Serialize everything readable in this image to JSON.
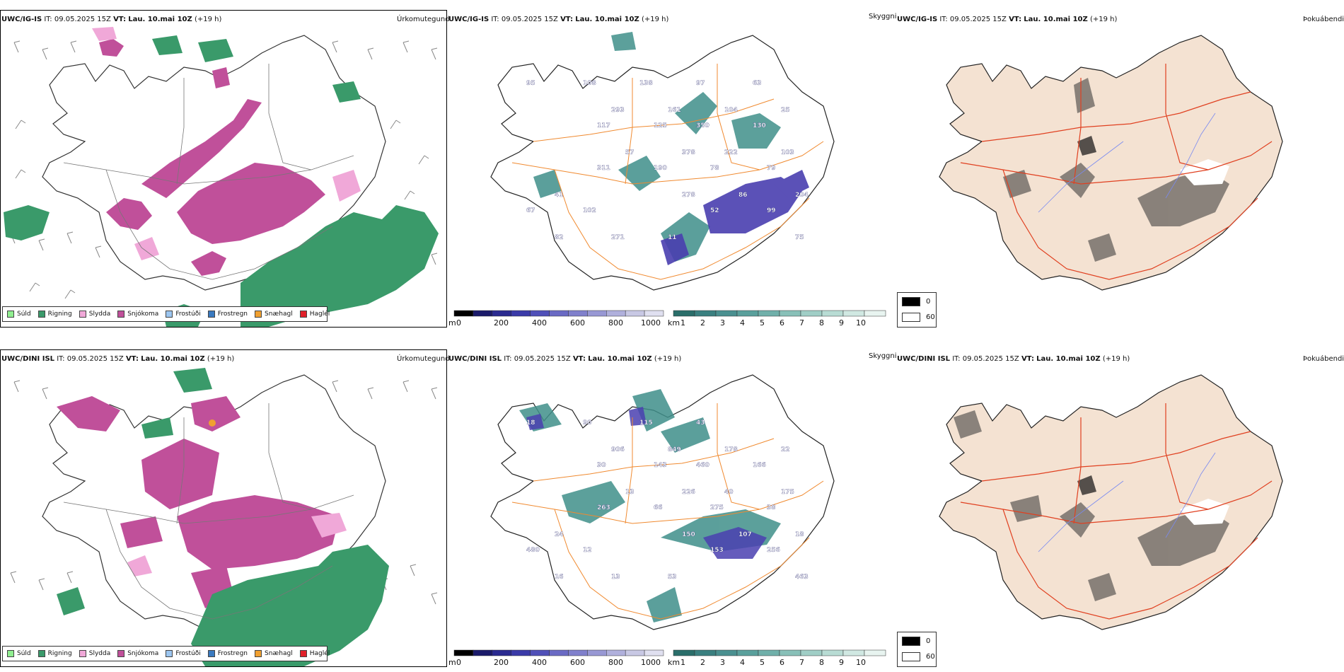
{
  "colors": {
    "drizzle": "#90ee90",
    "rain": "#3a9a6a",
    "sleet": "#f0a8d8",
    "snow": "#c0509a",
    "freezing_drizzle": "#9cc6f0",
    "freezing_rain": "#3a7ac0",
    "snow_pellets": "#f0a030",
    "hail": "#e0202a",
    "cloud_teal": "#3f8f8a",
    "cloud_purple": "#4a3fb0",
    "roads": "#f08a30",
    "land_tan": "#f4e2d2",
    "rivers": "#7a8af0",
    "red_roads": "#e04020"
  },
  "rows": [
    {
      "model": "UWC/IG-IS",
      "it_label": "IT:",
      "it_value": "09.05.2025 15Z",
      "vt_label": "VT:",
      "vt_value": "Lau. 10.mai 10Z",
      "lead": "(+19 h)",
      "precip_title": "Úrkomutegund",
      "cloud_title": "Skyggni",
      "fog_title": "Þokuábendi",
      "cloud_labels": [
        "95",
        "222",
        "52",
        "293",
        "311",
        "75",
        "350",
        "278",
        "108",
        "103",
        "99",
        "161",
        "190",
        "82",
        "130",
        "86",
        "138",
        "57",
        "67",
        "104",
        "78",
        "271",
        "117",
        "204",
        "97",
        "378",
        "102",
        "25",
        "79",
        "11",
        "125",
        "41",
        "63"
      ]
    },
    {
      "model": "UWC/DINI ISL",
      "it_label": "IT:",
      "it_value": "09.05.2025 15Z",
      "vt_label": "VT:",
      "vt_value": "Lau. 10.mai 10Z",
      "lead": "(+19 h)",
      "precip_title": "Úrkomutegund",
      "cloud_title": "Skyggni",
      "fog_title": "Þokuábendi",
      "cloud_labels": [
        "18",
        "40",
        "153",
        "906",
        "263",
        "463",
        "460",
        "150",
        "90",
        "175",
        "256",
        "849",
        "66",
        "16",
        "166",
        "107",
        "115",
        "13",
        "480",
        "178",
        "275",
        "13",
        "30",
        "18",
        "43",
        "226",
        "12",
        "22",
        "38",
        "53",
        "143",
        "24"
      ]
    }
  ],
  "precip_legend": [
    {
      "label": "Súld",
      "color": "#90ee90"
    },
    {
      "label": "Rigning",
      "color": "#3a9a6a"
    },
    {
      "label": "Slydda",
      "color": "#f0a8d8"
    },
    {
      "label": "Snjókoma",
      "color": "#c0509a"
    },
    {
      "label": "Frostúði",
      "color": "#9cc6f0"
    },
    {
      "label": "Frostregn",
      "color": "#3a7ac0"
    },
    {
      "label": "Snæhagl",
      "color": "#f0a030"
    },
    {
      "label": "Haglél",
      "color": "#e0202a"
    }
  ],
  "cbar_m": {
    "unit": "m",
    "ticks": [
      "0",
      "200",
      "400",
      "600",
      "800",
      "1000"
    ],
    "colors": [
      "#000000",
      "#1a1a6a",
      "#2a2a90",
      "#3a3aa8",
      "#5050b8",
      "#6a6ac4",
      "#8080cc",
      "#9898d4",
      "#b0b0dc",
      "#c8c8e4",
      "#e0e0f0"
    ]
  },
  "cbar_km": {
    "unit": "km",
    "ticks": [
      "1",
      "2",
      "3",
      "4",
      "5",
      "6",
      "7",
      "8",
      "9",
      "10"
    ],
    "colors": [
      "#2a6e6a",
      "#3a8080",
      "#4a9090",
      "#5aa09c",
      "#70b0aa",
      "#88c0b8",
      "#a0cec6",
      "#b8dcd4",
      "#d0e8e2",
      "#e8f4f0"
    ]
  },
  "fog_legend": [
    {
      "label": "0",
      "color": "#000000"
    },
    {
      "label": "60",
      "color": "#ffffff"
    }
  ]
}
